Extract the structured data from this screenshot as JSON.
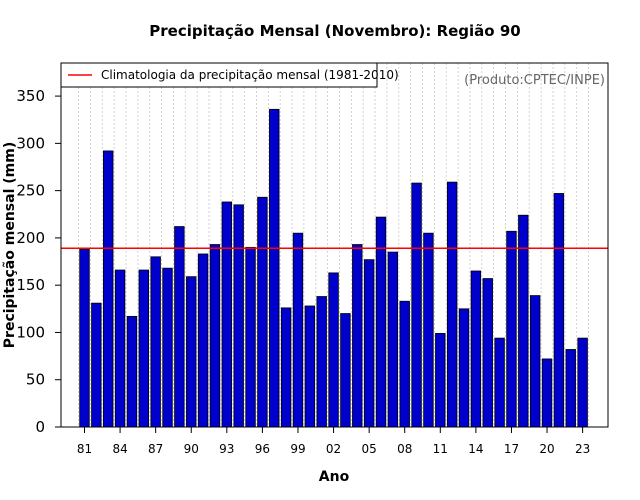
{
  "chart_data": {
    "type": "bar",
    "title": "Precipitação Mensal (Novembro): Região 90",
    "xlabel": "Ano",
    "ylabel": "Precipitação mensal (mm)",
    "source_note": "(Produto:CPTEC/INPE)",
    "ylim": [
      0,
      385
    ],
    "yticks": [
      0,
      50,
      100,
      150,
      200,
      250,
      300,
      350
    ],
    "grid": "vertical dotted",
    "legend_position": "top-left",
    "categories": [
      "81",
      "82",
      "83",
      "84",
      "85",
      "86",
      "87",
      "88",
      "89",
      "90",
      "91",
      "92",
      "93",
      "94",
      "95",
      "96",
      "97",
      "98",
      "99",
      "00",
      "01",
      "02",
      "03",
      "04",
      "05",
      "06",
      "07",
      "08",
      "09",
      "10",
      "11",
      "12",
      "13",
      "14",
      "15",
      "16",
      "17",
      "18",
      "19",
      "20",
      "21",
      "22",
      "23"
    ],
    "tick_labels": [
      "81",
      "84",
      "87",
      "90",
      "93",
      "96",
      "99",
      "02",
      "05",
      "08",
      "11",
      "14",
      "17",
      "20",
      "23"
    ],
    "series": [
      {
        "name": "Precipitação mensal",
        "color": "#0000cc",
        "values": [
          188,
          131,
          292,
          166,
          117,
          166,
          180,
          168,
          212,
          159,
          183,
          193,
          238,
          235,
          190,
          243,
          336,
          126,
          205,
          128,
          138,
          163,
          120,
          193,
          177,
          222,
          185,
          133,
          258,
          205,
          99,
          259,
          125,
          165,
          157,
          94,
          207,
          224,
          139,
          72,
          247,
          82,
          94
        ]
      }
    ],
    "reference_line": {
      "label": "Climatologia da precipitação mensal (1981-2010)",
      "value": 189,
      "color": "#ff0000"
    }
  }
}
